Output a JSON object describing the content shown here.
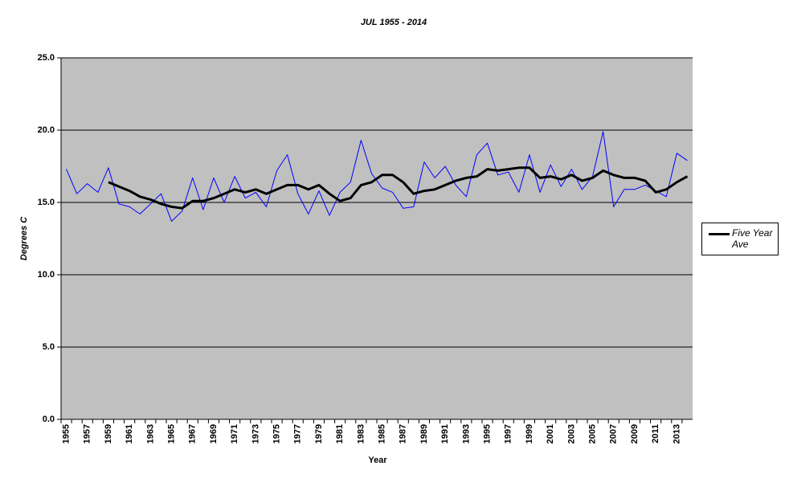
{
  "chart_data": {
    "type": "line",
    "title": "JUL 1955 - 2014",
    "x_label": "Year",
    "y_label": "Degrees C",
    "categories": [
      "1955",
      null,
      "1957",
      null,
      "1959",
      null,
      "1961",
      null,
      "1963",
      null,
      "1965",
      null,
      "1967",
      null,
      "1969",
      null,
      "1971",
      null,
      "1973",
      null,
      "1975",
      null,
      "1977",
      null,
      "1979",
      null,
      "1981",
      null,
      "1983",
      null,
      "1985",
      null,
      "1987",
      null,
      "1989",
      null,
      "1991",
      null,
      "1993",
      null,
      "1995",
      null,
      "1997",
      null,
      "1999",
      null,
      "2001",
      null,
      "2003",
      null,
      "2005",
      null,
      "2007",
      null,
      "2009",
      null,
      "2011",
      null,
      "2013",
      null
    ],
    "series": [
      {
        "color": "#0000ff",
        "width": 1,
        "values": [
          17.3,
          15.6,
          16.3,
          15.7,
          17.4,
          14.9,
          14.7,
          14.2,
          14.9,
          15.6,
          13.7,
          14.4,
          16.7,
          14.5,
          16.7,
          15.0,
          16.8,
          15.3,
          15.7,
          14.7,
          17.2,
          18.3,
          15.6,
          14.2,
          15.8,
          14.1,
          15.7,
          16.4,
          19.3,
          17.0,
          16.0,
          15.7,
          14.6,
          14.7,
          17.8,
          16.7,
          17.5,
          16.2,
          15.4,
          18.3,
          19.1,
          16.9,
          17.1,
          15.7,
          18.3,
          15.7,
          17.6,
          16.1,
          17.3,
          15.9,
          16.8,
          19.9,
          14.7,
          15.9,
          15.9,
          16.2,
          15.8,
          15.4,
          18.4,
          17.9
        ]
      },
      {
        "name": "Five Year Ave",
        "color": "#000000",
        "width": 3,
        "values": [
          null,
          null,
          null,
          null,
          16.4,
          16.1,
          15.8,
          15.4,
          15.2,
          14.9,
          14.7,
          14.6,
          15.1,
          15.1,
          15.3,
          15.6,
          15.9,
          15.7,
          15.9,
          15.6,
          15.9,
          16.2,
          16.2,
          15.9,
          16.2,
          15.6,
          15.1,
          15.3,
          16.2,
          16.4,
          16.9,
          16.9,
          16.4,
          15.6,
          15.8,
          15.9,
          16.2,
          16.5,
          16.7,
          16.8,
          17.3,
          17.2,
          17.3,
          17.4,
          17.4,
          16.7,
          16.8,
          16.6,
          16.9,
          16.5,
          16.7,
          17.2,
          16.9,
          16.7,
          16.7,
          16.5,
          15.7,
          15.9,
          16.4,
          16.8
        ]
      }
    ],
    "ylim": [
      0,
      25
    ],
    "yticks": [
      {
        "value": 0,
        "label": "0.0"
      },
      {
        "value": 5,
        "label": "5.0"
      },
      {
        "value": 10,
        "label": "10.0"
      },
      {
        "value": 15,
        "label": "15.0"
      },
      {
        "value": 20,
        "label": "20.0"
      },
      {
        "value": 25,
        "label": "25.0"
      }
    ],
    "grid": true,
    "plot_background": "#c0c0c0",
    "legend_position": "right"
  }
}
